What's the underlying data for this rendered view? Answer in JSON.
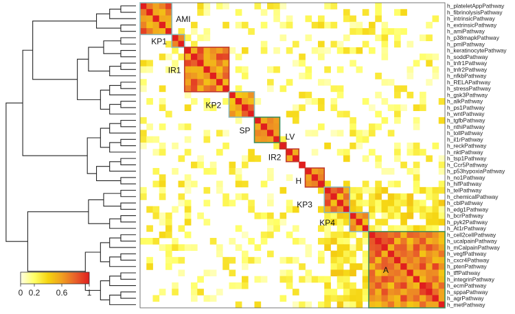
{
  "chart_data": {
    "type": "heatmap",
    "title": "",
    "rows": [
      "h_plateletAppPathway",
      "h_fibrinolysisPathway",
      "h_intrinsicPathway",
      "h_extrinsicPathway",
      "h_amiPathway",
      "h_p38mapkPathway",
      "h_pmlPathway",
      "h_keratinocytePathway",
      "h_soddPathway",
      "h_tnfr1Pathway",
      "h_tnfr2Pathway",
      "h_nfkbPathway",
      "h_RELAPathway",
      "h_stressPathway",
      "h_gsk3Pathway",
      "h_alkPathway",
      "h_ps1Pathway",
      "h_wntPathway",
      "h_tgfbPathway",
      "h_nthiPathway",
      "h_tollPathway",
      "h_il1rPathway",
      "h_reckPathway",
      "h_nktPathway",
      "h_tsp1Pathway",
      "h_Ccr5Pathway",
      "h_p53hypoxiaPathway",
      "h_no1Pathway",
      "h_hifPathway",
      "h_telPathway",
      "h_chemicalPathway",
      "h_cblPathway",
      "h_edg1Pathway",
      "h_bcrPathway",
      "h_pyk2Pathway",
      "h_At1rPathway",
      "h_cell2cellPathway",
      "h_ucalpainPathway",
      "h_mCalpainPathway",
      "h_vegfPathway",
      "h_cxcr4Pathway",
      "h_ptenPathway",
      "h_tffPathway",
      "h_integrinPathway",
      "h_ecmPathway",
      "h_sppaPathway",
      "h_agrPathway",
      "h_metPathway"
    ],
    "clusters": [
      {
        "label": "AMI",
        "start": 0,
        "end": 4,
        "color": "#8ab7b8"
      },
      {
        "label": "KP1",
        "start": 5,
        "end": 6,
        "color": "#8ab7b8"
      },
      {
        "label": "IR1",
        "start": 7,
        "end": 13,
        "color": "#c0392b"
      },
      {
        "label": "KP2",
        "start": 14,
        "end": 17,
        "color": "#8ab7b8"
      },
      {
        "label": "SP",
        "start": 18,
        "end": 21,
        "color": "#3e8e5a"
      },
      {
        "label": "LV",
        "start": 22,
        "end": 22,
        "color": "#c0392b"
      },
      {
        "label": "IR2",
        "start": 23,
        "end": 24,
        "color": "#c0392b"
      },
      {
        "label": "H",
        "start": 26,
        "end": 28,
        "color": "#c0392b"
      },
      {
        "label": "KP3",
        "start": 29,
        "end": 32,
        "color": "#8ab7b8"
      },
      {
        "label": "KP4",
        "start": 33,
        "end": 35,
        "color": "#8ab7b8"
      },
      {
        "label": "A",
        "start": 36,
        "end": 47,
        "color": "#3e8e5a"
      }
    ],
    "colorscale": {
      "stops": [
        "#ffffe5",
        "#ffff66",
        "#f5d410",
        "#f0a020",
        "#e8602a",
        "#e01e1e"
      ],
      "ticks": [
        "0",
        "0.2",
        "0.6",
        "1"
      ],
      "range": [
        0,
        1
      ]
    },
    "diagonal_value": 1,
    "grid": false,
    "legend_position": "bottom-left"
  }
}
